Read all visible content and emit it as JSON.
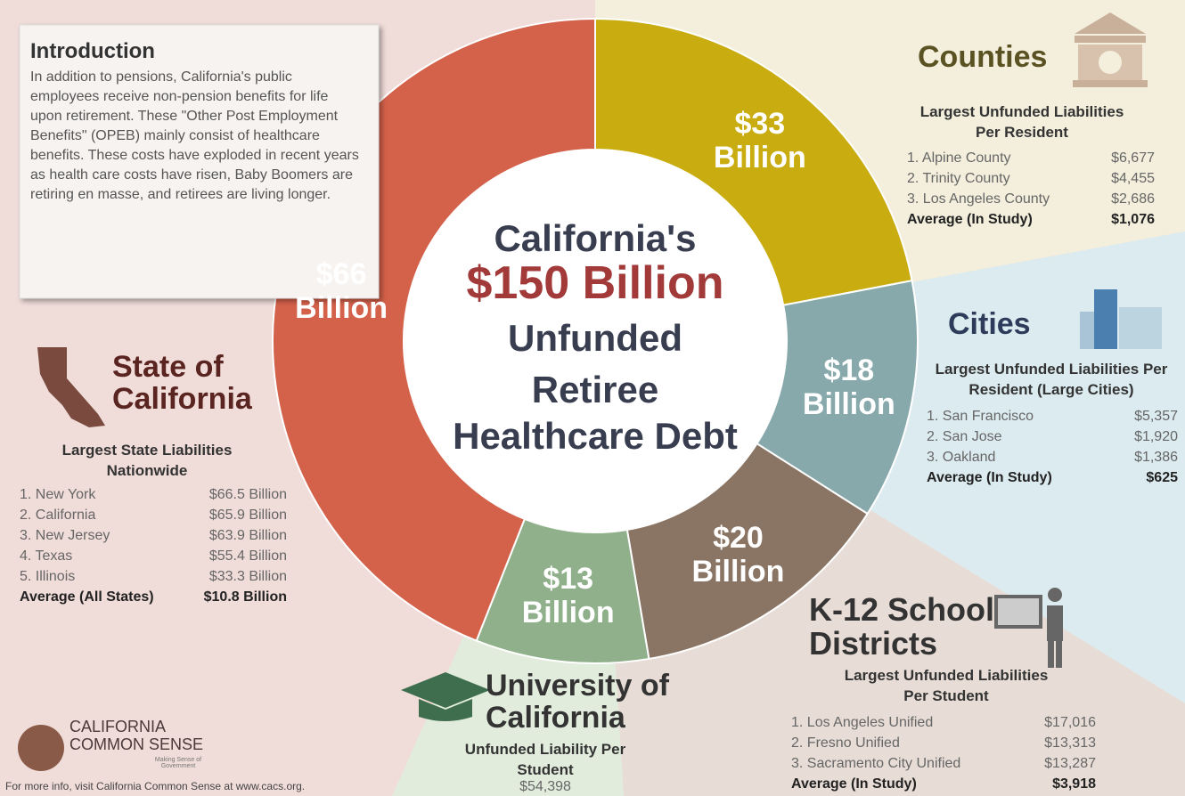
{
  "chart_data": {
    "type": "pie",
    "donut": true,
    "title_lines": [
      "California's",
      "$150 Billion",
      "Unfunded",
      "Retiree",
      "Healthcare Debt"
    ],
    "categories": [
      "Counties",
      "Cities",
      "K-12 School Districts",
      "University of California",
      "State of California"
    ],
    "values": [
      33,
      18,
      20,
      13,
      66
    ],
    "value_labels": [
      "$33 Billion",
      "$18 Billion",
      "$20 Billion",
      "$13 Billion",
      "$66 Billion"
    ],
    "colors": [
      "#c9ad10",
      "#87a9ab",
      "#8a7565",
      "#8fb08a",
      "#d4614a"
    ]
  },
  "intro": {
    "title": "Introduction",
    "text": "In addition to pensions, California's public employees receive non-pension benefits for life upon retirement. These \"Other Post Employment Benefits\" (OPEB) mainly consist of healthcare benefits. These costs have exploded in recent years as health care costs have risen, Baby Boomers are retiring en masse, and retirees are living longer."
  },
  "sections": [
    {
      "subtitle": "Largest Unfunded Liabilities Per Resident",
      "rows": [
        {
          "name": "1. Alpine County",
          "value": "$6,677"
        },
        {
          "name": "2. Trinity County",
          "value": "$4,455"
        },
        {
          "name": "3. Los Angeles County",
          "value": "$2,686"
        }
      ],
      "average": {
        "name": "Average (In Study)",
        "value": "$1,076"
      }
    },
    {
      "subtitle": "Largest Unfunded Liabilities Per Resident (Large Cities)",
      "rows": [
        {
          "name": "1. San Francisco",
          "value": "$5,357"
        },
        {
          "name": "2. San Jose",
          "value": "$1,920"
        },
        {
          "name": "3. Oakland",
          "value": "$1,386"
        }
      ],
      "average": {
        "name": "Average (In Study)",
        "value": "$625"
      }
    },
    {
      "subtitle": "Largest Unfunded Liabilities Per Student",
      "rows": [
        {
          "name": "1. Los Angeles Unified",
          "value": "$17,016"
        },
        {
          "name": "2. Fresno Unified",
          "value": "$13,313"
        },
        {
          "name": "3. Sacramento City Unified",
          "value": "$13,287"
        }
      ],
      "average": {
        "name": "Average (In Study)",
        "value": "$3,918"
      }
    },
    {
      "subtitle": "Unfunded Liability Per Student",
      "rows": [],
      "average": {
        "name": "",
        "value": "$54,398"
      }
    },
    {
      "subtitle": "Largest State Liabilities Nationwide",
      "rows": [
        {
          "name": "1. New York",
          "value": "$66.5 Billion"
        },
        {
          "name": "2. California",
          "value": "$65.9 Billion"
        },
        {
          "name": "3. New Jersey",
          "value": "$63.9 Billion"
        },
        {
          "name": "4. Texas",
          "value": "$55.4 Billion"
        },
        {
          "name": "5. Illinois",
          "value": "$33.3 Billion"
        }
      ],
      "average": {
        "name": "Average (All States)",
        "value": "$10.8 Billion"
      }
    }
  ],
  "logo": {
    "line1": "CALIFORNIA",
    "line2": "COMMON SENSE",
    "tagline": "Making Sense of Government"
  },
  "footer": "For more info, visit California Common Sense at www.cacs.org."
}
